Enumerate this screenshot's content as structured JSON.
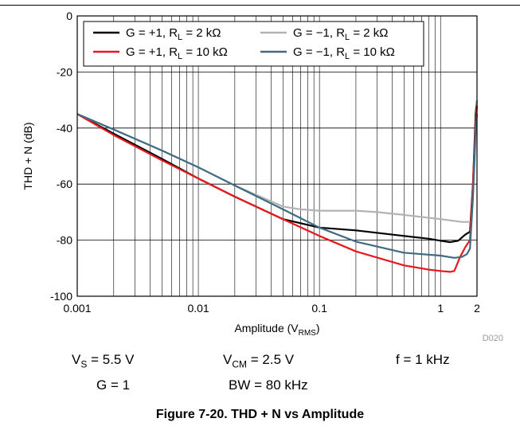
{
  "chart_data": {
    "type": "line",
    "xscale": "log",
    "xlim": [
      0.001,
      2
    ],
    "ylim": [
      -100,
      0
    ],
    "xticks": [
      "0.001",
      "0.01",
      "0.1",
      "1",
      "2"
    ],
    "yticks": [
      "0",
      "-20",
      "-40",
      "-60",
      "-80",
      "-100"
    ],
    "xlabel": "Amplitude (V",
    "xlabel_sub": "RMS",
    "xlabel_end": ")",
    "ylabel": "THD + N (dB)",
    "grid": true,
    "legend_position": "top",
    "series": [
      {
        "name": "G = +1, R",
        "name_sub": "L",
        "name_end": " = 2 kΩ",
        "color": "#000000",
        "x": [
          0.001,
          0.002,
          0.005,
          0.01,
          0.02,
          0.05,
          0.1,
          0.2,
          0.5,
          0.8,
          1.0,
          1.2,
          1.4,
          1.6,
          1.75,
          1.85,
          1.95,
          2.0
        ],
        "y": [
          -35,
          -42,
          -51,
          -58,
          -64.5,
          -72.5,
          -75.5,
          -76.5,
          -78.5,
          -79.5,
          -80.2,
          -80.7,
          -80.2,
          -78,
          -77,
          -60,
          -35,
          -30
        ]
      },
      {
        "name": "G = −1, R",
        "name_sub": "L",
        "name_end": " = 2 kΩ",
        "color": "#b3b3b3",
        "x": [
          0.001,
          0.002,
          0.005,
          0.01,
          0.02,
          0.05,
          0.07,
          0.1,
          0.2,
          0.3,
          0.5,
          1.0,
          1.5,
          1.8,
          1.9,
          2.0
        ],
        "y": [
          -35,
          -40.5,
          -48,
          -54,
          -60.5,
          -68,
          -69,
          -69.5,
          -69.5,
          -70,
          -71,
          -72.5,
          -73.5,
          -73.5,
          -55,
          -30
        ]
      },
      {
        "name": "G = +1, R",
        "name_sub": "L",
        "name_end": " = 10 kΩ",
        "color": "#e8191c",
        "x": [
          0.001,
          0.002,
          0.005,
          0.01,
          0.02,
          0.05,
          0.1,
          0.2,
          0.5,
          0.8,
          1.0,
          1.2,
          1.3,
          1.45,
          1.6,
          1.75,
          1.85,
          1.95,
          2.0
        ],
        "y": [
          -35,
          -42.5,
          -51.5,
          -58,
          -64.5,
          -72.5,
          -78.5,
          -84,
          -89,
          -90.5,
          -91,
          -91.3,
          -91,
          -86,
          -82.5,
          -80,
          -60,
          -38,
          -32
        ]
      },
      {
        "name": "G = −1, R",
        "name_sub": "L",
        "name_end": " = 10 kΩ",
        "color": "#3f6b85",
        "x": [
          0.001,
          0.002,
          0.005,
          0.01,
          0.02,
          0.05,
          0.1,
          0.2,
          0.5,
          1.0,
          1.3,
          1.5,
          1.65,
          1.75,
          1.85,
          1.95,
          2.0
        ],
        "y": [
          -35,
          -40.5,
          -48,
          -54,
          -60.5,
          -69,
          -75.5,
          -80.5,
          -84.5,
          -85.5,
          -86.3,
          -86,
          -85,
          -83,
          -65,
          -40,
          -35
        ]
      }
    ],
    "conditions": [
      {
        "key": "V",
        "sub": "S",
        "value": " = 5.5 V"
      },
      {
        "key": "V",
        "sub": "CM",
        "value": " = 2.5 V"
      },
      {
        "key": "f",
        "sub": "",
        "value": " = 1 kHz"
      },
      {
        "key": "G",
        "sub": "",
        "value": " = 1"
      },
      {
        "key": "BW",
        "sub": "",
        "value": " = 80 kHz"
      }
    ],
    "figure_code": "D020",
    "caption": "Figure 7-20. THD + N vs Amplitude"
  }
}
